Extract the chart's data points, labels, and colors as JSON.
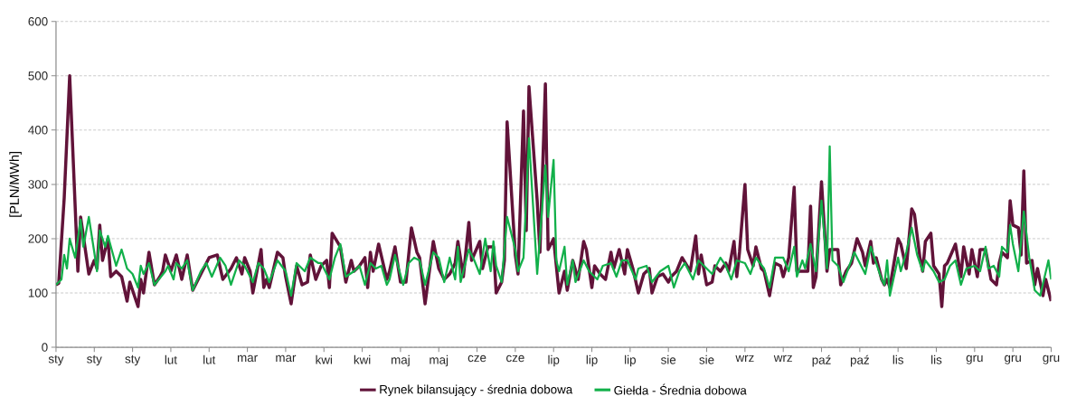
{
  "chart_data": {
    "type": "line",
    "ylabel": "[PLN/MWh]",
    "categories": [
      "sty",
      null,
      null,
      null,
      null,
      null,
      null,
      null,
      null,
      null,
      null,
      null,
      null,
      null,
      "sty",
      null,
      null,
      null,
      null,
      null,
      null,
      null,
      null,
      null,
      null,
      null,
      null,
      null,
      "sty",
      null,
      null,
      null,
      null,
      null,
      null,
      null,
      null,
      null,
      null,
      null,
      null,
      null,
      "lut",
      null,
      null,
      null,
      null,
      null,
      null,
      null,
      null,
      null,
      null,
      null,
      null,
      null,
      "lut",
      null,
      null,
      null,
      null,
      null,
      null,
      null,
      null,
      null,
      null,
      null,
      null,
      null,
      "mar",
      null,
      null,
      null,
      null,
      null,
      null,
      null,
      null,
      null,
      null,
      null,
      null,
      null,
      "mar",
      null,
      null,
      null,
      null,
      null,
      null,
      null,
      null,
      null,
      null,
      null,
      null,
      null,
      "kwi",
      null,
      null,
      null,
      null,
      null,
      null,
      null,
      null,
      null,
      null,
      null,
      null,
      null,
      "kwi",
      null,
      null,
      null,
      null,
      null,
      null,
      null,
      null,
      null,
      null,
      null,
      null,
      null,
      "maj",
      null,
      null,
      null,
      null,
      null,
      null,
      null,
      null,
      null,
      null,
      null,
      null,
      null,
      "maj",
      null,
      null,
      null,
      null,
      null,
      null,
      null,
      null,
      null,
      null,
      null,
      null,
      null,
      "cze",
      null,
      null,
      null,
      null,
      null,
      null,
      null,
      null,
      null,
      null,
      null,
      null,
      null,
      "cze",
      null,
      null,
      null,
      null,
      null,
      null,
      null,
      null,
      null,
      null,
      null,
      null,
      null,
      "lip",
      null,
      null,
      null,
      null,
      null,
      null,
      null,
      null,
      null,
      null,
      null,
      null,
      null,
      "lip",
      null,
      null,
      null,
      null,
      null,
      null,
      null,
      null,
      null,
      null,
      null,
      null,
      null,
      "lip",
      null,
      null,
      null,
      null,
      null,
      null,
      null,
      null,
      null,
      null,
      null,
      null,
      null,
      "sie",
      null,
      null,
      null,
      null,
      null,
      null,
      null,
      null,
      null,
      null,
      null,
      null,
      null,
      "sie",
      null,
      null,
      null,
      null,
      null,
      null,
      null,
      null,
      null,
      null,
      null,
      null,
      null,
      "wrz",
      null,
      null,
      null,
      null,
      null,
      null,
      null,
      null,
      null,
      null,
      null,
      null,
      null,
      "wrz",
      null,
      null,
      null,
      null,
      null,
      null,
      null,
      null,
      null,
      null,
      null,
      null,
      null,
      "paź",
      null,
      null,
      null,
      null,
      null,
      null,
      null,
      null,
      null,
      null,
      null,
      null,
      null,
      "paź",
      null,
      null,
      null,
      null,
      null,
      null,
      null,
      null,
      null,
      null,
      null,
      null,
      null,
      "lis",
      null,
      null,
      null,
      null,
      null,
      null,
      null,
      null,
      null,
      null,
      null,
      null,
      null,
      "lis",
      null,
      null,
      null,
      null,
      null,
      null,
      null,
      null,
      null,
      null,
      null,
      null,
      null,
      "gru",
      null,
      null,
      null,
      null,
      null,
      null,
      null,
      null,
      null,
      null,
      null,
      null,
      null,
      "gru",
      null,
      null,
      null,
      null,
      null,
      null,
      null,
      null,
      null,
      null,
      null,
      null,
      null,
      "gru"
    ],
    "ylim": [
      0,
      600
    ],
    "yticks": [
      0,
      100,
      200,
      300,
      400,
      500,
      600
    ],
    "grid": "y",
    "legend": "bottom",
    "marker": "none",
    "line_style": "solid",
    "series": [
      {
        "name": "Rynek bilansujący - średnia dobowa",
        "color": "#611339",
        "values": [
          115,
          118,
          null,
          275,
          null,
          500,
          null,
          null,
          140,
          240,
          null,
          null,
          135,
          null,
          160,
          145,
          225,
          160,
          null,
          200,
          130,
          null,
          140,
          null,
          130,
          null,
          85,
          120,
          null,
          null,
          75,
          125,
          100,
          null,
          175,
          null,
          115,
          null,
          130,
          140,
          170,
          null,
          140,
          null,
          170,
          null,
          125,
          null,
          170,
          null,
          105,
          null,
          null,
          135,
          null,
          null,
          165,
          null,
          null,
          170,
          null,
          125,
          null,
          null,
          145,
          null,
          165,
          null,
          135,
          165,
          null,
          140,
          100,
          null,
          null,
          180,
          110,
          125,
          110,
          null,
          null,
          175,
          null,
          165,
          130,
          null,
          80,
          null,
          150,
          null,
          115,
          null,
          120,
          170,
          null,
          125,
          null,
          150,
          null,
          160,
          110,
          210,
          null,
          null,
          185,
          null,
          120,
          null,
          160,
          140,
          null,
          150,
          null,
          165,
          110,
          175,
          140,
          null,
          190,
          null,
          null,
          125,
          140,
          null,
          185,
          null,
          120,
          null,
          120,
          null,
          220,
          null,
          175,
          165,
          null,
          80,
          null,
          null,
          195,
          null,
          145,
          null,
          125,
          null,
          135,
          null,
          155,
          195,
          null,
          130,
          null,
          230,
          160,
          null,
          null,
          195,
          145,
          null,
          185,
          null,
          185,
          100,
          null,
          120,
          160,
          415,
          null,
          null,
          170,
          135,
          null,
          435,
          215,
          480,
          null,
          null,
          270,
          175,
          null,
          485,
          180,
          null,
          200,
          null,
          100,
          null,
          140,
          105,
          null,
          160,
          null,
          125,
          null,
          195,
          180,
          null,
          110,
          150,
          null,
          135,
          null,
          125,
          null,
          175,
          145,
          null,
          180,
          null,
          135,
          180,
          null,
          145,
          null,
          100,
          null,
          135,
          null,
          145,
          100,
          null,
          130,
          null,
          135,
          null,
          120,
          130,
          null,
          140,
          null,
          165,
          null,
          null,
          140,
          null,
          205,
          135,
          170,
          null,
          115,
          null,
          120,
          150,
          null,
          140,
          null,
          155,
          140,
          null,
          195,
          130,
          175,
          null,
          300,
          180,
          null,
          150,
          185,
          null,
          145,
          140,
          null,
          95,
          null,
          155,
          null,
          150,
          130,
          null,
          165,
          null,
          295,
          140,
          null,
          140,
          null,
          140,
          260,
          110,
          130,
          null,
          305,
          null,
          140,
          180,
          null,
          null,
          180,
          115,
          null,
          140,
          null,
          155,
          null,
          200,
          null,
          175,
          150,
          null,
          195,
          155,
          165,
          null,
          125,
          115,
          125,
          110,
          null,
          null,
          200,
          190,
          null,
          145,
          null,
          255,
          245,
          null,
          165,
          140,
          195,
          null,
          210,
          150,
          null,
          135,
          75,
          150,
          155,
          null,
          null,
          190,
          null,
          130,
          185,
          null,
          135,
          180,
          null,
          130,
          180,
          null,
          180,
          null,
          125,
          null,
          115,
          155,
          175,
          null,
          165,
          270,
          225,
          null,
          220,
          170,
          325,
          155,
          null,
          160,
          115,
          145,
          null,
          95,
          125,
          null,
          85
        ]
      },
      {
        "name": "Giełda - Średnia dobowa",
        "color": "#12b04a",
        "values": [
          115,
          null,
          125,
          170,
          145,
          200,
          null,
          165,
          null,
          235,
          185,
          null,
          240,
          null,
          175,
          140,
          215,
          null,
          185,
          205,
          null,
          null,
          150,
          null,
          180,
          null,
          145,
          null,
          135,
          null,
          110,
          150,
          135,
          null,
          155,
          null,
          115,
          null,
          null,
          null,
          140,
          150,
          null,
          125,
          155,
          null,
          145,
          null,
          160,
          null,
          105,
          null,
          null,
          140,
          null,
          155,
          null,
          130,
          null,
          null,
          165,
          null,
          150,
          null,
          115,
          null,
          null,
          160,
          null,
          150,
          null,
          null,
          120,
          null,
          155,
          null,
          145,
          null,
          120,
          null,
          null,
          160,
          null,
          null,
          140,
          null,
          95,
          null,
          155,
          null,
          null,
          140,
          null,
          165,
          null,
          null,
          155,
          155,
          null,
          null,
          125,
          null,
          165,
          null,
          190,
          null,
          130,
          null,
          null,
          140,
          null,
          150,
          null,
          115,
          null,
          155,
          null,
          145,
          null,
          150,
          null,
          115,
          125,
          null,
          170,
          null,
          null,
          115,
          null,
          155,
          null,
          165,
          null,
          160,
          null,
          115,
          null,
          null,
          175,
          null,
          165,
          null,
          120,
          null,
          165,
          null,
          125,
          185,
          120,
          null,
          null,
          180,
          null,
          160,
          null,
          135,
          null,
          200,
          null,
          140,
          195,
          150,
          null,
          120,
          null,
          240,
          null,
          null,
          180,
          140,
          null,
          165,
          null,
          385,
          null,
          null,
          135,
          null,
          null,
          335,
          240,
          null,
          345,
          160,
          140,
          null,
          185,
          115,
          null,
          160,
          120,
          null,
          null,
          160,
          null,
          140,
          null,
          null,
          125,
          null,
          150,
          null,
          null,
          155,
          null,
          130,
          null,
          160,
          null,
          160,
          null,
          null,
          125,
          145,
          null,
          null,
          150,
          null,
          120,
          null,
          null,
          140,
          null,
          null,
          150,
          null,
          110,
          null,
          140,
          null,
          155,
          null,
          null,
          125,
          null,
          160,
          null,
          null,
          null,
          null,
          135,
          null,
          null,
          165,
          null,
          150,
          null,
          125,
          null,
          160,
          null,
          null,
          155,
          null,
          135,
          null,
          165,
          null,
          null,
          145,
          null,
          110,
          null,
          165,
          null,
          null,
          165,
          null,
          140,
          null,
          185,
          130,
          null,
          160,
          145,
          null,
          190,
          null,
          140,
          null,
          270,
          null,
          145,
          370,
          160,
          null,
          150,
          null,
          120,
          null,
          null,
          null,
          175,
          null,
          null,
          null,
          135,
          null,
          185,
          null,
          155,
          null,
          125,
          115,
          160,
          95,
          null,
          null,
          165,
          140,
          null,
          175,
          null,
          220,
          null,
          170,
          null,
          140,
          160,
          null,
          null,
          140,
          null,
          120,
          null,
          125,
          null,
          150,
          null,
          160,
          null,
          115,
          null,
          145,
          null,
          null,
          150,
          null,
          140,
          null,
          185,
          145,
          null,
          150,
          null,
          130,
          185,
          null,
          175,
          225,
          190,
          null,
          140,
          null,
          250,
          null,
          165,
          null,
          105,
          null,
          95,
          null,
          null,
          160,
          125
        ]
      }
    ]
  }
}
